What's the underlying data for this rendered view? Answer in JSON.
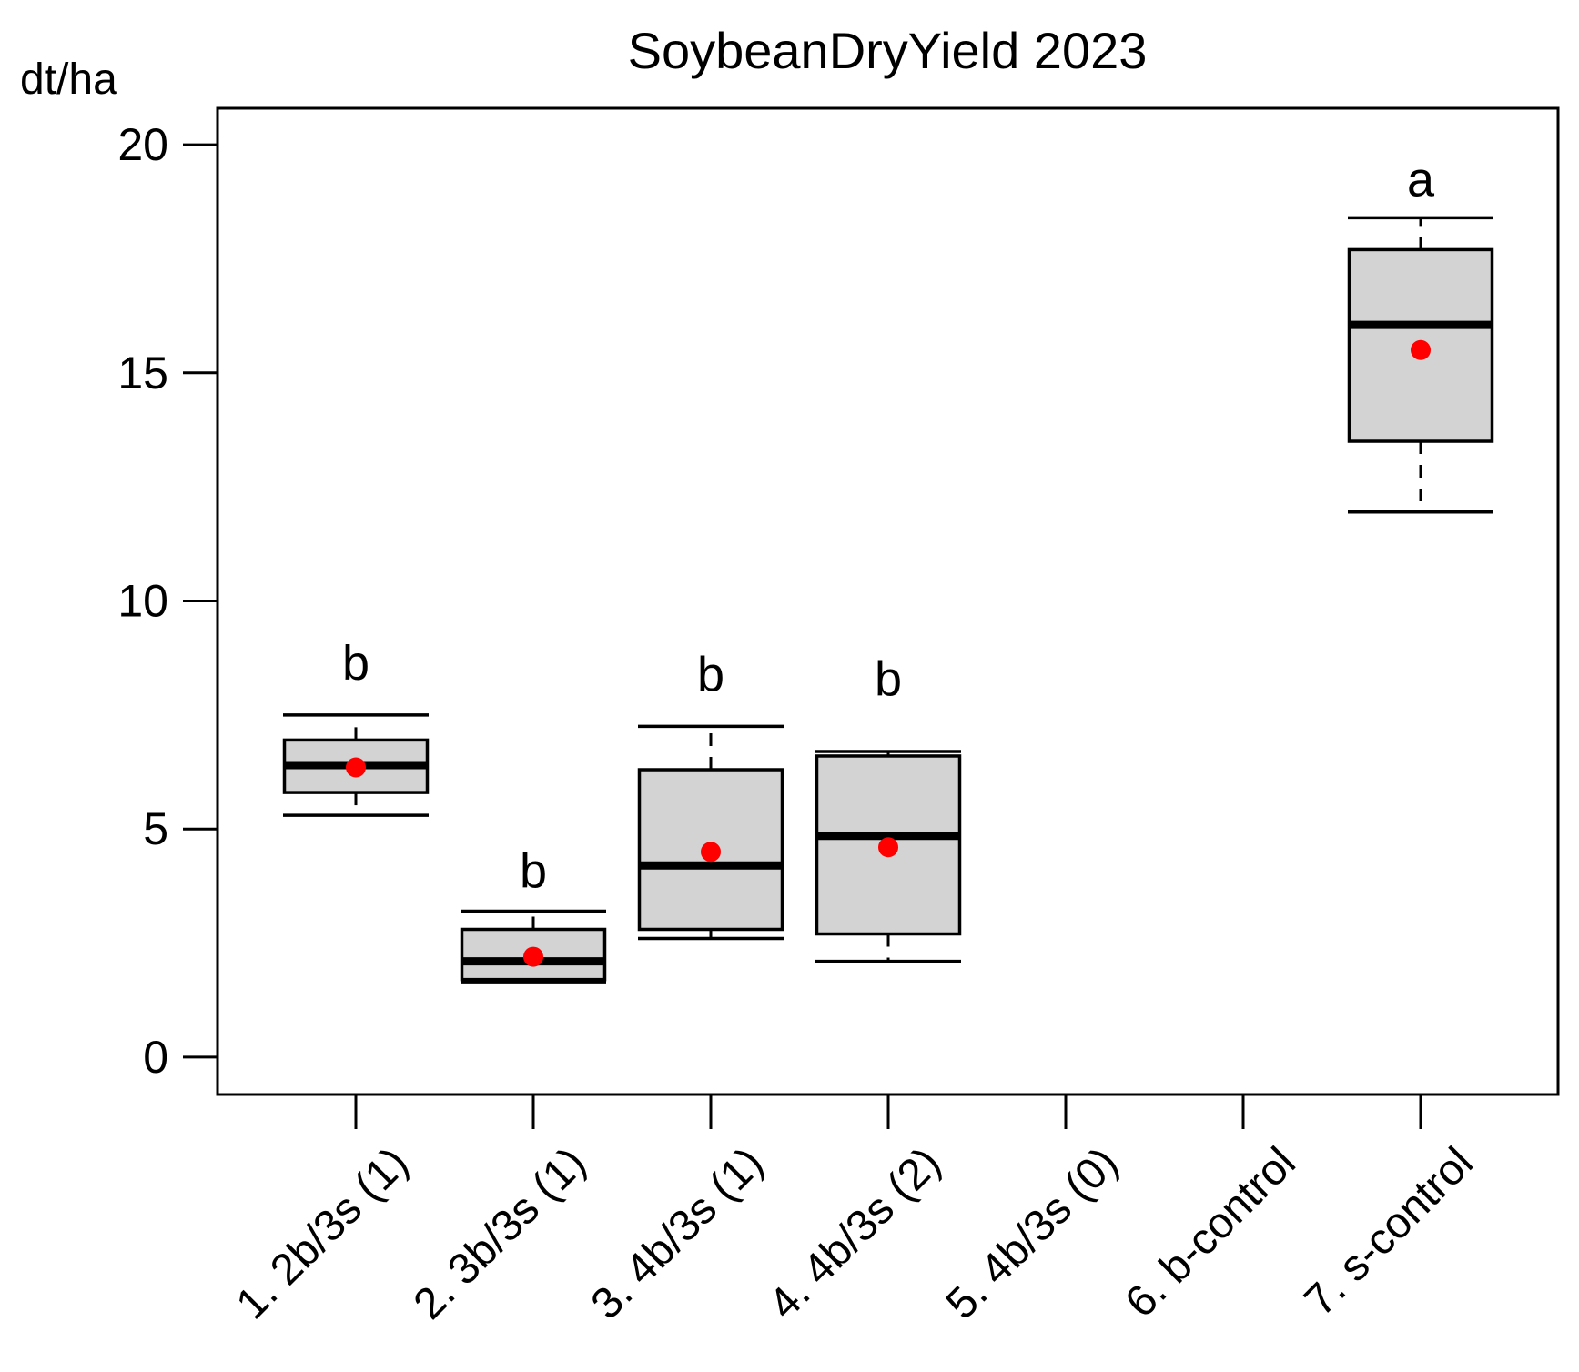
{
  "title": "SoybeanDryYield 2023",
  "y_axis": {
    "label": "dt/ha",
    "ticks": [
      0,
      5,
      10,
      15,
      20
    ]
  },
  "chart_data": {
    "type": "boxplot",
    "title": "SoybeanDryYield 2023",
    "ylabel": "dt/ha",
    "ylim": [
      -0.82,
      20.8
    ],
    "grid": false,
    "legend": "none",
    "categories": [
      "1. 2b/3s (1)",
      "2. 3b/3s (1)",
      "3. 4b/3s (1)",
      "4. 4b/3s (2)",
      "5. 4b/3s (0)",
      "6. b-control",
      "7. s-control"
    ],
    "y_ticks": [
      0,
      5,
      10,
      15,
      20
    ],
    "boxes": [
      {
        "category": "1. 2b/3s (1)",
        "sig_letter": "b",
        "letter_y": 8.65,
        "whisker_low": 5.3,
        "q1": 5.8,
        "median": 6.4,
        "q3": 6.95,
        "whisker_high": 7.5,
        "mean": 6.35
      },
      {
        "category": "2. 3b/3s (1)",
        "sig_letter": "b",
        "letter_y": 4.1,
        "whisker_low": 1.65,
        "q1": 1.7,
        "median": 2.1,
        "q3": 2.8,
        "whisker_high": 3.2,
        "mean": 2.2
      },
      {
        "category": "3. 4b/3s (1)",
        "sig_letter": "b",
        "letter_y": 8.4,
        "whisker_low": 2.6,
        "q1": 2.8,
        "median": 4.2,
        "q3": 6.3,
        "whisker_high": 7.25,
        "mean": 4.5
      },
      {
        "category": "4. 4b/3s (2)",
        "sig_letter": "b",
        "letter_y": 8.3,
        "whisker_low": 2.1,
        "q1": 2.7,
        "median": 4.85,
        "q3": 6.6,
        "whisker_high": 6.7,
        "mean": 4.6
      },
      {
        "category": "5. 4b/3s (0)",
        "sig_letter": null,
        "no_data": true
      },
      {
        "category": "6. b-control",
        "sig_letter": null,
        "no_data": true
      },
      {
        "category": "7. s-control",
        "sig_letter": "a",
        "letter_y": 19.25,
        "whisker_low": 11.95,
        "q1": 13.5,
        "median": 16.05,
        "q3": 17.7,
        "whisker_high": 18.4,
        "mean": 15.5
      }
    ],
    "colors": {
      "box_fill": "#d3d3d3",
      "line": "#000000",
      "mean_dot": "#ff0000"
    }
  }
}
